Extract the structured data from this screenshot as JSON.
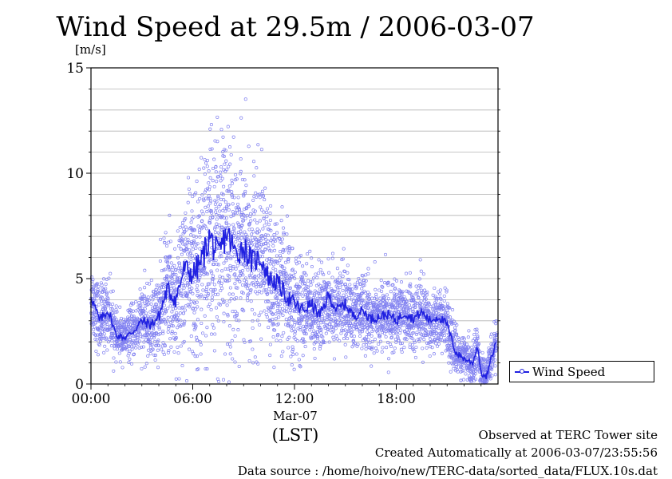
{
  "chart_data": {
    "type": "scatter",
    "title": "Wind Speed at 29.5m / 2006-03-07",
    "ylabel": "[m/s]",
    "xlabel_date": "Mar-07",
    "xlabel_tz": "(LST)",
    "ylim": [
      0,
      15
    ],
    "xlim_hours": [
      0,
      24
    ],
    "y_ticks": [
      0,
      5,
      10,
      15
    ],
    "y_tick_labels": [
      "0",
      "5",
      "10",
      "15"
    ],
    "x_ticks_hours": [
      0,
      6,
      12,
      18
    ],
    "x_tick_labels": [
      "00:00",
      "06:00",
      "12:00",
      "18:00"
    ],
    "grid": true,
    "legend_position": "right",
    "series": [
      {
        "name": "Wind Speed",
        "color": "#2020e0",
        "point_color": "#8080f0",
        "mean_hour": [
          0.0,
          0.5,
          1.0,
          1.5,
          2.0,
          2.5,
          3.0,
          3.5,
          4.0,
          4.5,
          5.0,
          5.5,
          6.0,
          6.5,
          7.0,
          7.5,
          8.0,
          8.5,
          9.0,
          9.5,
          10.0,
          10.5,
          11.0,
          11.5,
          12.0,
          12.5,
          13.0,
          13.5,
          14.0,
          14.5,
          15.0,
          15.5,
          16.0,
          16.5,
          17.0,
          17.5,
          18.0,
          18.5,
          19.0,
          19.5,
          20.0,
          20.5,
          21.0,
          21.5,
          22.0,
          22.5,
          22.8,
          23.0,
          23.3,
          23.6,
          23.9
        ],
        "mean_value": [
          4.2,
          3.0,
          3.5,
          2.3,
          2.2,
          2.5,
          3.0,
          2.8,
          3.2,
          4.5,
          4.0,
          5.5,
          5.2,
          5.8,
          7.0,
          6.0,
          7.2,
          6.2,
          6.5,
          5.8,
          6.0,
          5.0,
          4.8,
          4.2,
          3.8,
          3.5,
          3.8,
          3.2,
          4.2,
          3.5,
          3.8,
          3.2,
          3.5,
          3.1,
          3.2,
          3.3,
          3.0,
          3.4,
          3.1,
          3.4,
          3.0,
          3.2,
          2.8,
          1.5,
          1.2,
          1.0,
          1.8,
          0.5,
          0.3,
          1.2,
          2.0
        ],
        "spread_value": [
          0.8,
          0.8,
          0.8,
          0.5,
          0.5,
          0.6,
          0.8,
          0.8,
          1.0,
          1.4,
          1.5,
          1.8,
          2.0,
          2.3,
          2.5,
          2.5,
          2.5,
          2.4,
          2.2,
          2.0,
          1.8,
          1.6,
          1.5,
          1.4,
          1.2,
          1.1,
          1.0,
          1.0,
          1.0,
          0.9,
          0.9,
          0.8,
          0.8,
          0.8,
          0.8,
          0.8,
          0.8,
          0.8,
          0.8,
          0.8,
          0.7,
          0.7,
          0.7,
          0.5,
          0.5,
          0.5,
          0.5,
          0.4,
          0.4,
          0.5,
          0.6
        ]
      }
    ]
  },
  "footer": {
    "line1": "Observed at TERC Tower site",
    "line2": "Created Automatically at 2006-03-07/23:55:56",
    "line3": "Data source : /home/hoivo/new/TERC-data/sorted_data/FLUX.10s.dat"
  }
}
